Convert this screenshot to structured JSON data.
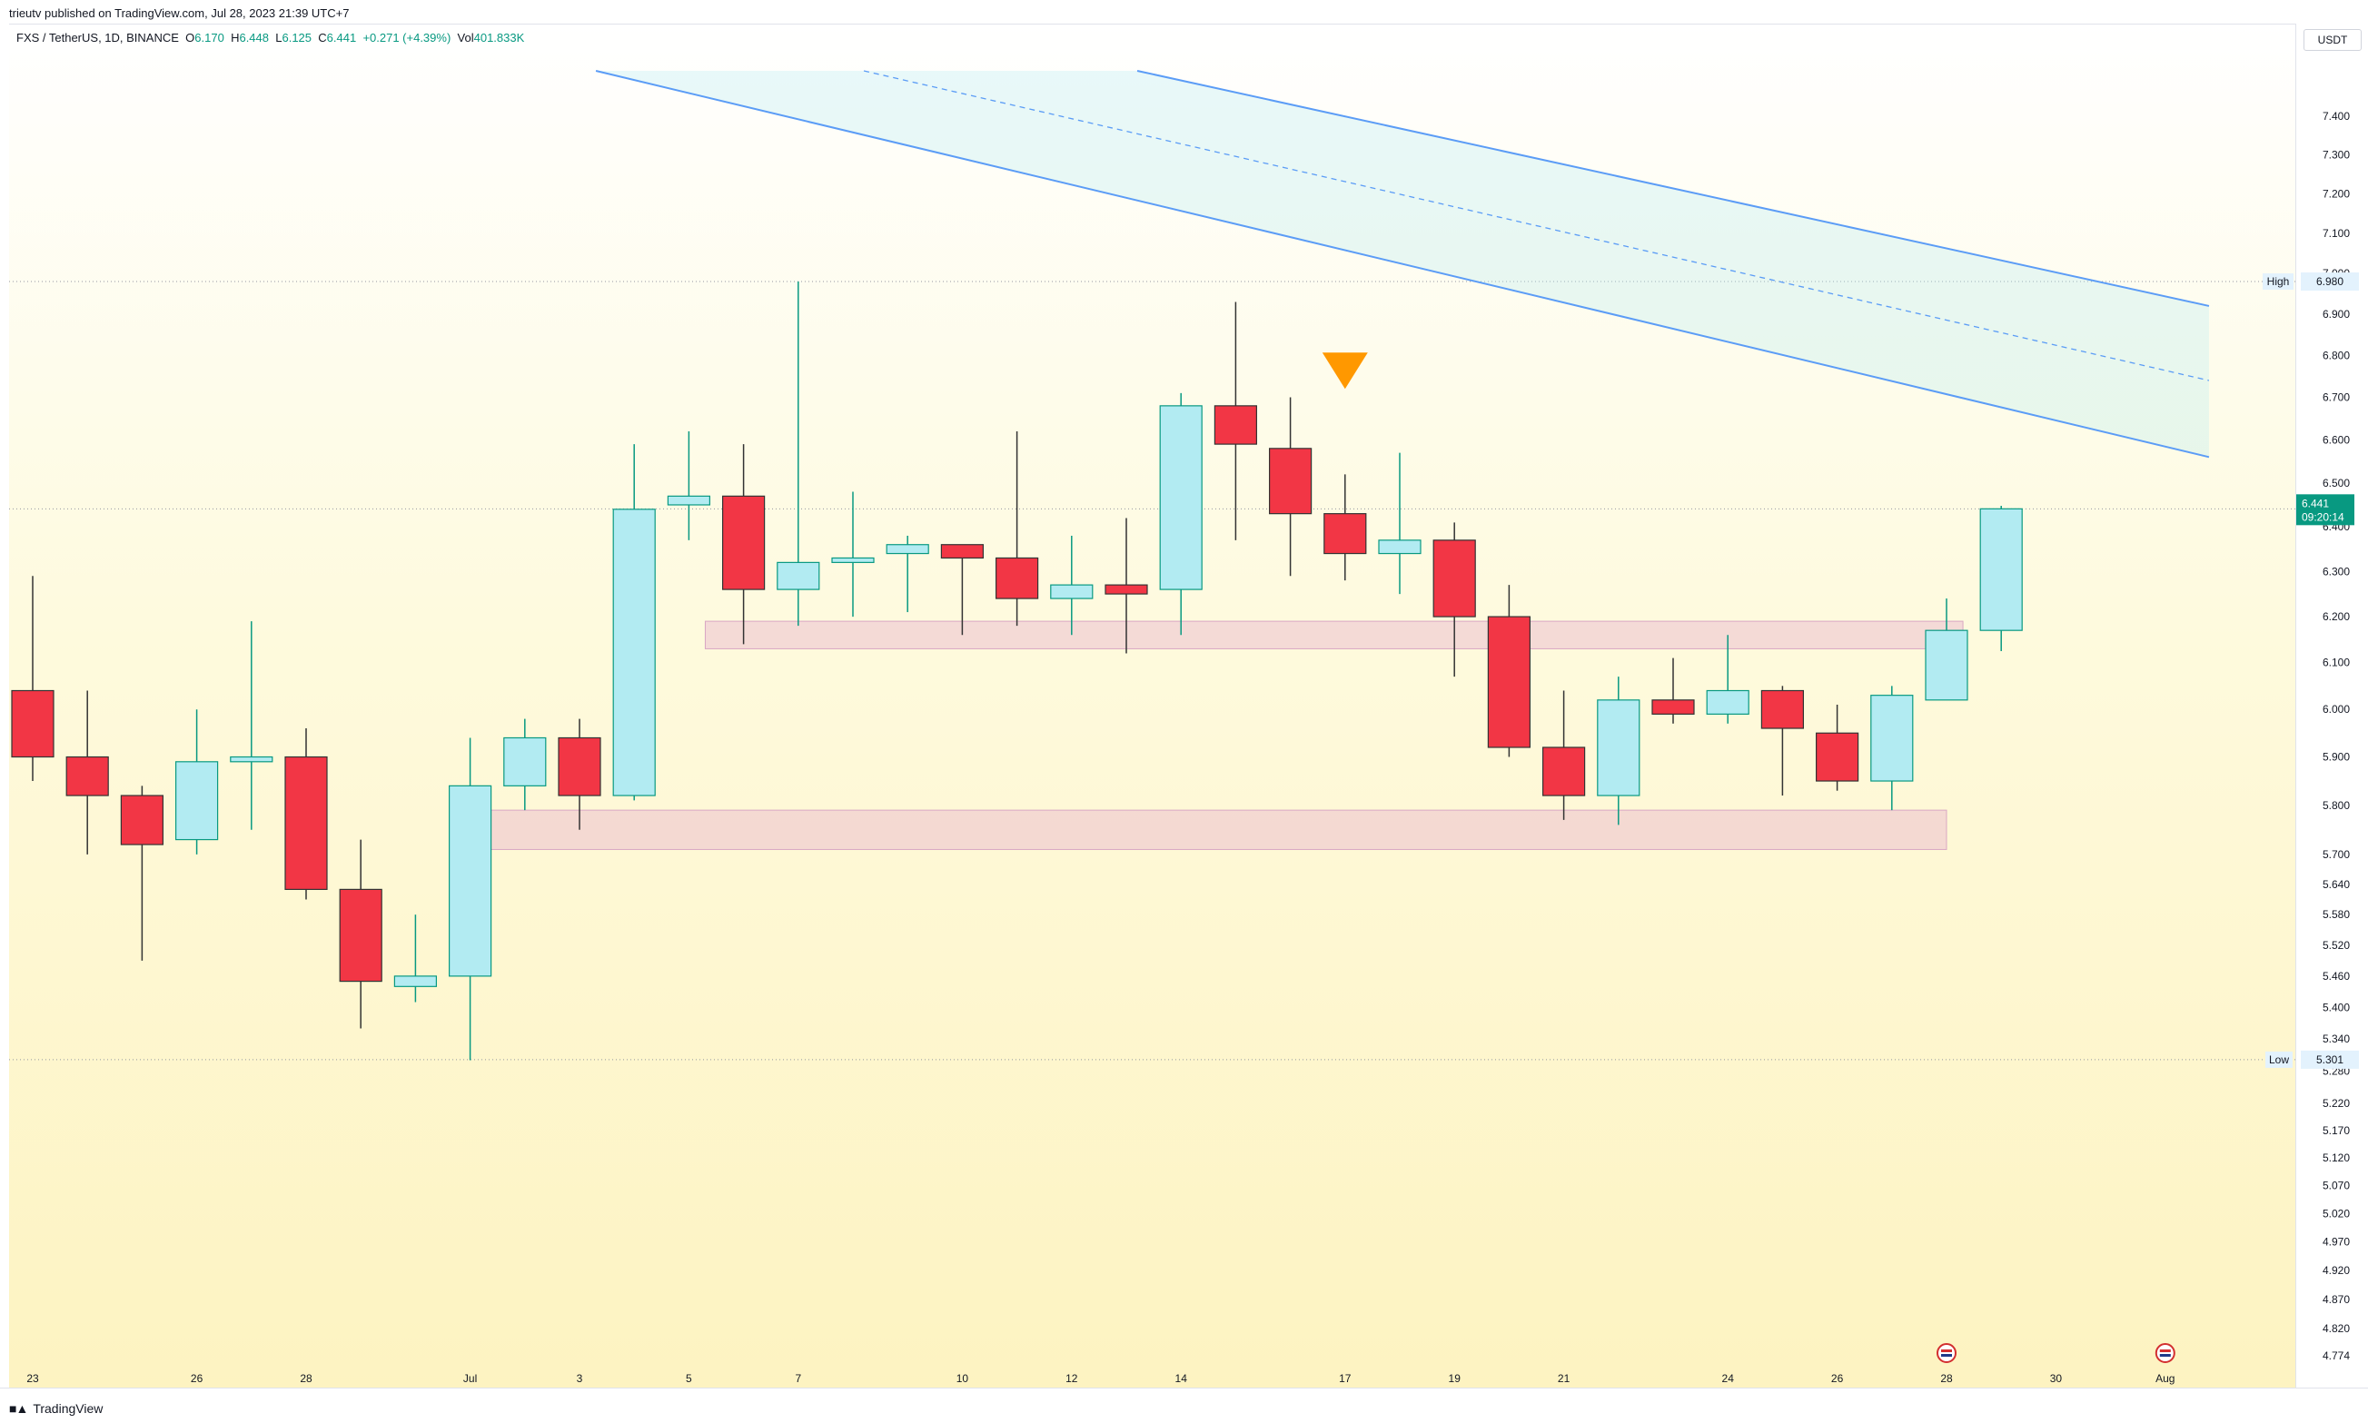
{
  "header": {
    "published": "trieutv published on TradingView.com, Jul 28, 2023 21:39 UTC+7"
  },
  "symbol": {
    "pair": "FXS / TetherUS, 1D, BINANCE",
    "o_label": "O",
    "o": "6.170",
    "h_label": "H",
    "h": "6.448",
    "l_label": "L",
    "l": "6.125",
    "c_label": "C",
    "c": "6.441",
    "change": "+0.271 (+4.39%)",
    "vol_label": "Vol",
    "vol": "401.833K"
  },
  "currency_button": "USDT",
  "last_price": {
    "value": "6.441",
    "countdown": "09:20:14"
  },
  "high_marker": {
    "label": "High",
    "value": "6.980"
  },
  "low_marker": {
    "label": "Low",
    "value": "5.301"
  },
  "brand": {
    "name": "TradingView"
  },
  "colors": {
    "up": "#b2ebf2",
    "down": "#f23645",
    "up_border": "#089981",
    "accent": "#089981",
    "channel": "#5b9cf6",
    "zone": "#e8b4cf",
    "signal": "#ff9800"
  },
  "chart_data": {
    "type": "candlestick",
    "y_scale": "log",
    "ylim": [
      4.774,
      7.52
    ],
    "y_ticks": [
      "7.400",
      "7.300",
      "7.200",
      "7.100",
      "7.000",
      "6.900",
      "6.800",
      "6.700",
      "6.600",
      "6.500",
      "6.400",
      "6.300",
      "6.200",
      "6.100",
      "6.000",
      "5.900",
      "5.800",
      "5.700",
      "5.640",
      "5.580",
      "5.520",
      "5.460",
      "5.400",
      "5.340",
      "5.280",
      "5.220",
      "5.170",
      "5.120",
      "5.070",
      "5.020",
      "4.970",
      "4.920",
      "4.870",
      "4.820",
      "4.774"
    ],
    "x_ticks": [
      {
        "label": "23",
        "day": 0
      },
      {
        "label": "26",
        "day": 3
      },
      {
        "label": "28",
        "day": 5
      },
      {
        "label": "Jul",
        "day": 8
      },
      {
        "label": "3",
        "day": 10
      },
      {
        "label": "5",
        "day": 12
      },
      {
        "label": "7",
        "day": 14
      },
      {
        "label": "10",
        "day": 17
      },
      {
        "label": "12",
        "day": 19
      },
      {
        "label": "14",
        "day": 21
      },
      {
        "label": "17",
        "day": 24
      },
      {
        "label": "19",
        "day": 26
      },
      {
        "label": "21",
        "day": 28
      },
      {
        "label": "24",
        "day": 31
      },
      {
        "label": "26",
        "day": 33
      },
      {
        "label": "28",
        "day": 35
      },
      {
        "label": "30",
        "day": 37
      },
      {
        "label": "Aug",
        "day": 39
      }
    ],
    "candles": [
      {
        "o": 6.04,
        "h": 6.29,
        "l": 5.85,
        "c": 5.9
      },
      {
        "o": 5.9,
        "h": 6.04,
        "l": 5.7,
        "c": 5.82
      },
      {
        "o": 5.82,
        "h": 5.84,
        "l": 5.49,
        "c": 5.72
      },
      {
        "o": 5.73,
        "h": 6.0,
        "l": 5.7,
        "c": 5.89
      },
      {
        "o": 5.89,
        "h": 6.19,
        "l": 5.75,
        "c": 5.9
      },
      {
        "o": 5.9,
        "h": 5.96,
        "l": 5.61,
        "c": 5.63
      },
      {
        "o": 5.63,
        "h": 5.73,
        "l": 5.36,
        "c": 5.45
      },
      {
        "o": 5.44,
        "h": 5.58,
        "l": 5.41,
        "c": 5.46
      },
      {
        "o": 5.46,
        "h": 5.94,
        "l": 5.3,
        "c": 5.84
      },
      {
        "o": 5.84,
        "h": 5.98,
        "l": 5.79,
        "c": 5.94
      },
      {
        "o": 5.94,
        "h": 5.98,
        "l": 5.75,
        "c": 5.82
      },
      {
        "o": 5.82,
        "h": 6.59,
        "l": 5.81,
        "c": 6.44
      },
      {
        "o": 6.45,
        "h": 6.62,
        "l": 6.37,
        "c": 6.47
      },
      {
        "o": 6.47,
        "h": 6.59,
        "l": 6.14,
        "c": 6.26
      },
      {
        "o": 6.26,
        "h": 6.98,
        "l": 6.18,
        "c": 6.32
      },
      {
        "o": 6.32,
        "h": 6.48,
        "l": 6.2,
        "c": 6.33
      },
      {
        "o": 6.34,
        "h": 6.38,
        "l": 6.21,
        "c": 6.36
      },
      {
        "o": 6.36,
        "h": 6.36,
        "l": 6.16,
        "c": 6.33
      },
      {
        "o": 6.33,
        "h": 6.62,
        "l": 6.18,
        "c": 6.24
      },
      {
        "o": 6.24,
        "h": 6.38,
        "l": 6.16,
        "c": 6.27
      },
      {
        "o": 6.27,
        "h": 6.42,
        "l": 6.12,
        "c": 6.25
      },
      {
        "o": 6.26,
        "h": 6.71,
        "l": 6.16,
        "c": 6.68
      },
      {
        "o": 6.68,
        "h": 6.93,
        "l": 6.37,
        "c": 6.59
      },
      {
        "o": 6.58,
        "h": 6.7,
        "l": 6.29,
        "c": 6.43
      },
      {
        "o": 6.43,
        "h": 6.52,
        "l": 6.28,
        "c": 6.34
      },
      {
        "o": 6.34,
        "h": 6.57,
        "l": 6.25,
        "c": 6.37
      },
      {
        "o": 6.37,
        "h": 6.41,
        "l": 6.07,
        "c": 6.2
      },
      {
        "o": 6.2,
        "h": 6.27,
        "l": 5.9,
        "c": 5.92
      },
      {
        "o": 5.92,
        "h": 6.04,
        "l": 5.77,
        "c": 5.82
      },
      {
        "o": 5.82,
        "h": 6.07,
        "l": 5.76,
        "c": 6.02
      },
      {
        "o": 6.02,
        "h": 6.11,
        "l": 5.97,
        "c": 5.99
      },
      {
        "o": 5.99,
        "h": 6.16,
        "l": 5.97,
        "c": 6.04
      },
      {
        "o": 6.04,
        "h": 6.05,
        "l": 5.82,
        "c": 5.96
      },
      {
        "o": 5.95,
        "h": 6.01,
        "l": 5.83,
        "c": 5.85
      },
      {
        "o": 5.85,
        "h": 6.05,
        "l": 5.79,
        "c": 6.03
      },
      {
        "o": 6.02,
        "h": 6.24,
        "l": 6.02,
        "c": 6.17
      },
      {
        "o": 6.17,
        "h": 6.448,
        "l": 6.125,
        "c": 6.441
      }
    ],
    "zones": [
      {
        "day_start": 12.3,
        "day_end": 35.3,
        "top": 6.19,
        "bottom": 6.13
      },
      {
        "day_start": 8.0,
        "day_end": 35.0,
        "top": 5.79,
        "bottom": 5.71
      }
    ],
    "channel": {
      "upper": {
        "day_start": 20.2,
        "price_start": 7.52,
        "day_end": 39.8,
        "price_end": 6.92
      },
      "mid": {
        "day_start": 15.2,
        "price_start": 7.52,
        "day_end": 39.8,
        "price_end": 6.74
      },
      "lower": {
        "day_start": 10.3,
        "price_start": 7.52,
        "day_end": 39.8,
        "price_end": 6.56
      }
    },
    "signal": {
      "day": 24,
      "price": 6.72,
      "shape": "triangle-down"
    },
    "events": [
      {
        "day": 35
      },
      {
        "day": 39
      }
    ],
    "high": 6.98,
    "low": 5.301,
    "last": 6.441
  }
}
